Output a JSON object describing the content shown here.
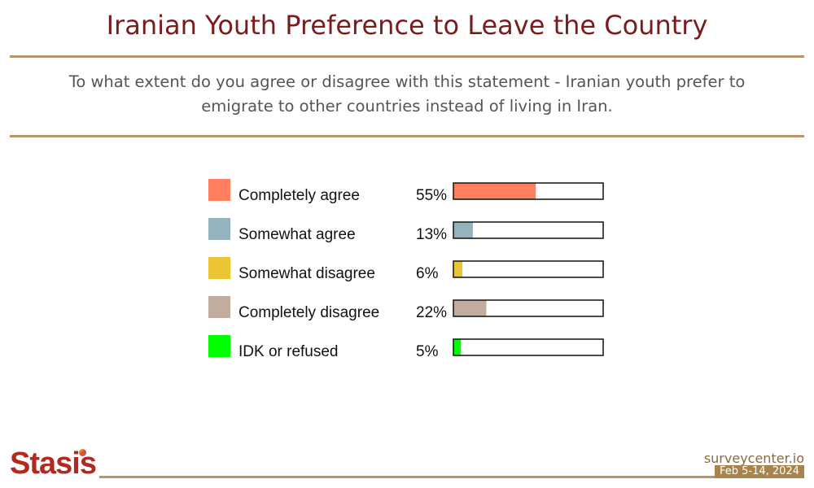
{
  "header": {
    "title": "Iranian Youth Preference to Leave the Country",
    "question": "To what extent do you agree or disagree with this statement - Iranian youth prefer to emigrate to other countries instead of living in Iran."
  },
  "chart_data": {
    "type": "bar",
    "orientation": "horizontal",
    "categories": [
      "Completely agree",
      "Somewhat agree",
      "Somewhat disagree",
      "Completely disagree",
      "IDK or refused"
    ],
    "values": [
      55,
      13,
      6,
      22,
      5
    ],
    "value_labels": [
      "55%",
      "13%",
      "6%",
      "22%",
      "5%"
    ],
    "colors": [
      "#ff7f5e",
      "#95b3bc",
      "#ebc435",
      "#c0ada0",
      "#00ff00"
    ],
    "xlim": [
      0,
      100
    ],
    "legend": "left",
    "grid": false
  },
  "footer": {
    "logo": "Stasis",
    "site": "surveycenter.io",
    "date": "Feb 5-14, 2024"
  }
}
